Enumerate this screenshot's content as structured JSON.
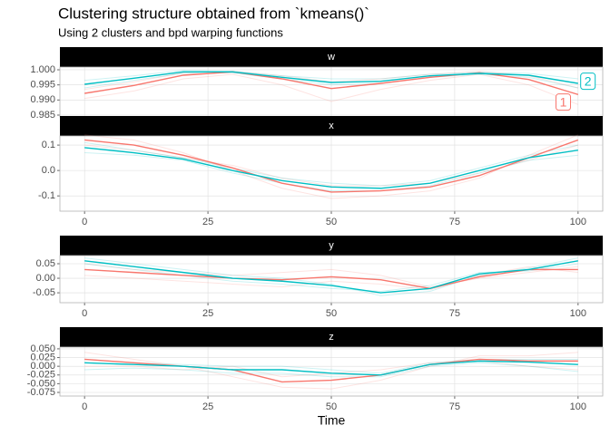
{
  "chart_data": [
    {
      "type": "line",
      "title": "Clustering structure obtained from `kmeans()`",
      "subtitle": "Using 2 clusters and bpd warping functions",
      "strip": "w",
      "x": [
        0,
        10,
        20,
        30,
        40,
        50,
        60,
        70,
        80,
        90,
        100
      ],
      "series": [
        {
          "name": "1",
          "color": "#f8766d",
          "values": [
            0.9922,
            0.9948,
            0.9982,
            0.9993,
            0.997,
            0.9938,
            0.9955,
            0.9975,
            0.999,
            0.9968,
            0.9918
          ]
        },
        {
          "name": "2",
          "color": "#00bfc4",
          "values": [
            0.9952,
            0.9972,
            0.9993,
            0.9993,
            0.9975,
            0.9958,
            0.9962,
            0.998,
            0.9988,
            0.9982,
            0.9955
          ]
        }
      ],
      "curves": [
        {
          "color": "#f8766d33",
          "values": [
            0.9905,
            0.993,
            0.997,
            0.9985,
            0.995,
            0.9895,
            0.9935,
            0.9965,
            0.9985,
            0.995,
            0.9885
          ]
        },
        {
          "color": "#f8766d33",
          "values": [
            0.9935,
            0.996,
            0.999,
            0.9995,
            0.998,
            0.996,
            0.997,
            0.9985,
            0.9995,
            0.998,
            0.994
          ]
        },
        {
          "color": "#00bfc433",
          "values": [
            0.9965,
            0.998,
            0.9998,
            0.9995,
            0.998,
            0.997,
            0.997,
            0.9985,
            0.9992,
            0.9988,
            0.997
          ]
        },
        {
          "color": "#00bfc433",
          "values": [
            0.994,
            0.9965,
            0.9988,
            0.999,
            0.997,
            0.995,
            0.9955,
            0.9975,
            0.9985,
            0.9975,
            0.994
          ]
        }
      ],
      "annotations": [
        {
          "text": "1",
          "x": 97,
          "y": 0.9893,
          "color": "#f8766d"
        },
        {
          "text": "2",
          "x": 102,
          "y": 0.9962,
          "color": "#00bfc4"
        }
      ],
      "xlim": [
        -5,
        105
      ],
      "xticks": [
        0,
        25,
        50,
        75,
        100
      ],
      "ylim": [
        0.9844,
        1.0009
      ],
      "yticks": [
        0.985,
        {
          "value": 0.99,
          "label": "0.990"
        },
        0.995,
        {
          "value": 1,
          "label": "1.000"
        }
      ],
      "grid": true
    },
    {
      "type": "line",
      "strip": "x",
      "x": [
        0,
        10,
        20,
        30,
        40,
        50,
        60,
        70,
        80,
        90,
        100
      ],
      "series": [
        {
          "name": "1",
          "color": "#f8766d",
          "values": [
            0.12,
            0.1,
            0.06,
            0.01,
            -0.05,
            -0.085,
            -0.08,
            -0.065,
            -0.02,
            0.05,
            0.12
          ]
        },
        {
          "name": "2",
          "color": "#00bfc4",
          "values": [
            0.09,
            0.07,
            0.045,
            0.0,
            -0.04,
            -0.065,
            -0.07,
            -0.05,
            0.0,
            0.05,
            0.08
          ]
        }
      ],
      "curves": [
        {
          "color": "#f8766d33",
          "values": [
            0.14,
            0.12,
            0.07,
            0.0,
            -0.07,
            -0.11,
            -0.1,
            -0.08,
            -0.03,
            0.06,
            0.14
          ]
        },
        {
          "color": "#f8766d33",
          "values": [
            0.1,
            0.08,
            0.05,
            0.02,
            -0.03,
            -0.06,
            -0.06,
            -0.05,
            -0.01,
            0.04,
            0.1
          ]
        },
        {
          "color": "#00bfc433",
          "values": [
            0.11,
            0.08,
            0.05,
            0.01,
            -0.03,
            -0.05,
            -0.06,
            -0.04,
            0.01,
            0.06,
            0.1
          ]
        },
        {
          "color": "#00bfc433",
          "values": [
            0.07,
            0.06,
            0.04,
            -0.01,
            -0.05,
            -0.08,
            -0.08,
            -0.06,
            -0.01,
            0.04,
            0.06
          ]
        }
      ],
      "xlim": [
        -5,
        105
      ],
      "xticks": [
        0,
        25,
        50,
        75,
        100
      ],
      "ylim": [
        -0.16,
        0.136
      ],
      "yticks": [
        -0.1,
        {
          "value": 0,
          "label": "0.0"
        },
        0.1
      ],
      "grid": true
    },
    {
      "type": "line",
      "strip": "y",
      "x": [
        0,
        10,
        20,
        30,
        40,
        50,
        60,
        70,
        80,
        90,
        100
      ],
      "series": [
        {
          "name": "1",
          "color": "#f8766d",
          "values": [
            0.03,
            0.02,
            0.01,
            0.0,
            -0.005,
            0.005,
            -0.005,
            -0.035,
            0.005,
            0.03,
            0.03
          ]
        },
        {
          "name": "2",
          "color": "#00bfc4",
          "values": [
            0.06,
            0.04,
            0.02,
            0.0,
            -0.01,
            -0.025,
            -0.05,
            -0.035,
            0.015,
            0.03,
            0.06
          ]
        }
      ],
      "curves": [
        {
          "color": "#f8766d33",
          "values": [
            0.05,
            0.03,
            0.02,
            0.01,
            0.02,
            0.03,
            0.01,
            -0.03,
            0.0,
            0.02,
            0.04
          ]
        },
        {
          "color": "#f8766d33",
          "values": [
            0.01,
            0.0,
            -0.01,
            -0.02,
            -0.03,
            -0.01,
            -0.02,
            -0.04,
            0.01,
            0.04,
            0.02
          ]
        },
        {
          "color": "#00bfc433",
          "values": [
            0.07,
            0.05,
            0.03,
            0.01,
            0.0,
            -0.02,
            -0.06,
            -0.045,
            0.01,
            0.035,
            0.07
          ]
        },
        {
          "color": "#00bfc433",
          "values": [
            0.05,
            0.03,
            0.01,
            -0.01,
            -0.02,
            -0.035,
            -0.045,
            -0.025,
            0.02,
            0.025,
            0.05
          ]
        }
      ],
      "xlim": [
        -5,
        105
      ],
      "xticks": [
        0,
        25,
        50,
        75,
        100
      ],
      "ylim": [
        -0.084,
        0.078
      ],
      "yticks": [
        -0.05,
        {
          "value": 0,
          "label": "0.00"
        },
        0.05
      ],
      "grid": true
    },
    {
      "type": "line",
      "strip": "z",
      "xlabel": "Time",
      "x": [
        0,
        10,
        20,
        30,
        40,
        50,
        60,
        70,
        80,
        90,
        100
      ],
      "series": [
        {
          "name": "1",
          "color": "#f8766d",
          "values": [
            0.02,
            0.01,
            0.0,
            -0.01,
            -0.045,
            -0.04,
            -0.025,
            0.005,
            0.02,
            0.015,
            0.015
          ]
        },
        {
          "name": "2",
          "color": "#00bfc4",
          "values": [
            0.01,
            0.005,
            0.0,
            -0.01,
            -0.01,
            -0.02,
            -0.025,
            0.005,
            0.015,
            0.012,
            0.005
          ]
        }
      ],
      "curves": [
        {
          "color": "#f8766d33",
          "values": [
            0.04,
            0.02,
            0.0,
            -0.03,
            -0.06,
            -0.065,
            -0.04,
            0.0,
            0.03,
            0.03,
            0.04
          ]
        },
        {
          "color": "#f8766d33",
          "values": [
            0.0,
            0.0,
            -0.01,
            0.0,
            -0.03,
            -0.02,
            -0.01,
            0.01,
            0.015,
            0.0,
            -0.01
          ]
        },
        {
          "color": "#00bfc433",
          "values": [
            0.02,
            0.01,
            0.005,
            0.0,
            0.0,
            -0.01,
            -0.02,
            0.01,
            0.02,
            0.02,
            0.02
          ]
        },
        {
          "color": "#00bfc433",
          "values": [
            -0.01,
            -0.005,
            -0.01,
            -0.02,
            -0.02,
            -0.03,
            -0.03,
            0.0,
            0.01,
            0.0,
            -0.015
          ]
        }
      ],
      "xlim": [
        -5,
        105
      ],
      "xticks": [
        0,
        25,
        50,
        75,
        100
      ],
      "ylim": [
        -0.0854,
        0.055
      ],
      "yticks": [
        -0.075,
        {
          "value": -0.05,
          "label": "-0.050"
        },
        -0.025,
        {
          "value": 0,
          "label": "0.000"
        },
        0.025,
        {
          "value": 0.05,
          "label": "0.050"
        }
      ],
      "grid": true
    }
  ]
}
